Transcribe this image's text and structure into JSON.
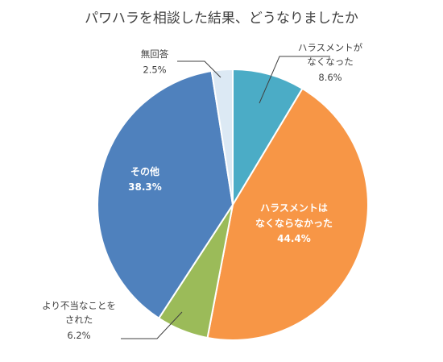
{
  "chart_data": {
    "type": "pie",
    "title": "パワハラを相談した結果、どうなりましたか",
    "slices": [
      {
        "label_lines": [
          "ハラスメントが",
          "なくなった"
        ],
        "value": 8.6,
        "display": "8.6%",
        "color": "#4BACC6"
      },
      {
        "label_lines": [
          "ハラスメントは",
          "なくならなかった"
        ],
        "value": 44.4,
        "display": "44.4%",
        "color": "#F79646"
      },
      {
        "label_lines": [
          "より不当なことを",
          "された"
        ],
        "value": 6.2,
        "display": "6.2%",
        "color": "#9BBB59"
      },
      {
        "label_lines": [
          "その他"
        ],
        "value": 38.3,
        "display": "38.3%",
        "color": "#4F81BD"
      },
      {
        "label_lines": [
          "無回答"
        ],
        "value": 2.5,
        "display": "2.5%",
        "color": "#DCE9F4"
      }
    ],
    "start_angle_deg": 0,
    "direction": "clockwise"
  }
}
